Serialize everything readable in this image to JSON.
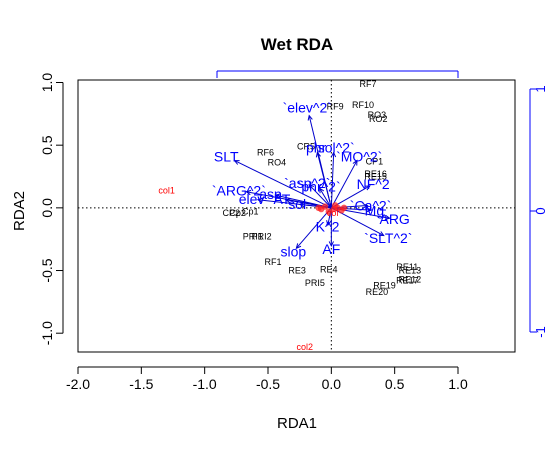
{
  "chart_data": {
    "type": "scatter",
    "title": "Wet RDA",
    "xlabel": "RDA1",
    "ylabel": "RDA2",
    "xlim": [
      -2.0,
      1.45
    ],
    "ylim": [
      -1.15,
      1.02
    ],
    "xticks": [
      "-2.0",
      "-1.5",
      "-1.0",
      "-0.5",
      "0.0",
      "0.5",
      "1.0"
    ],
    "yticks": [
      "-1.0",
      "-0.5",
      "0.0",
      "0.5",
      "1.0"
    ],
    "right_axis": {
      "ticks": [
        "-1",
        "0",
        "1"
      ],
      "color": "#0000ff"
    },
    "top_axis": {
      "color": "#0000ff"
    },
    "reference_lines": {
      "x": 0,
      "y": 0,
      "style": "dotted"
    },
    "sites": [
      {
        "label": "RF7",
        "x": 0.29,
        "y": 0.99
      },
      {
        "label": "RF9",
        "x": 0.03,
        "y": 0.81
      },
      {
        "label": "RF10",
        "x": 0.25,
        "y": 0.82
      },
      {
        "label": "RO3",
        "x": 0.36,
        "y": 0.74
      },
      {
        "label": "RO2",
        "x": 0.37,
        "y": 0.71
      },
      {
        "label": "CR5",
        "x": -0.2,
        "y": 0.49
      },
      {
        "label": "RF6",
        "x": -0.52,
        "y": 0.44
      },
      {
        "label": "RO4",
        "x": -0.43,
        "y": 0.36
      },
      {
        "label": "CP1",
        "x": 0.34,
        "y": 0.37
      },
      {
        "label": "RE16",
        "x": 0.35,
        "y": 0.27
      },
      {
        "label": "RE15",
        "x": 0.35,
        "y": 0.25
      },
      {
        "label": "Cp1",
        "x": -0.64,
        "y": -0.03
      },
      {
        "label": "CP2",
        "x": -0.79,
        "y": -0.04
      },
      {
        "label": "Cp2",
        "x": -0.74,
        "y": -0.04
      },
      {
        "label": "PRI2",
        "x": -0.55,
        "y": -0.23
      },
      {
        "label": "PRI1",
        "x": -0.62,
        "y": -0.23
      },
      {
        "label": "RF1",
        "x": -0.46,
        "y": -0.43
      },
      {
        "label": "RE3",
        "x": -0.27,
        "y": -0.5
      },
      {
        "label": "RE4",
        "x": -0.02,
        "y": -0.49
      },
      {
        "label": "PRI5",
        "x": -0.13,
        "y": -0.6
      },
      {
        "label": "RE11",
        "x": 0.6,
        "y": -0.47
      },
      {
        "label": "RE13",
        "x": 0.62,
        "y": -0.5
      },
      {
        "label": "RE12",
        "x": 0.62,
        "y": -0.57
      },
      {
        "label": "RE17",
        "x": 0.6,
        "y": -0.58
      },
      {
        "label": "RE19",
        "x": 0.42,
        "y": -0.62
      },
      {
        "label": "RE20",
        "x": 0.36,
        "y": -0.67
      }
    ],
    "species": [
      {
        "label": "col1",
        "x": -1.3,
        "y": 0.14
      },
      {
        "label": "col2",
        "x": -0.21,
        "y": -1.11
      },
      {
        "label": "col",
        "x": 0.01,
        "y": -0.04
      }
    ],
    "biplot_vectors": [
      {
        "label": "`elev^2`",
        "x": -0.19,
        "y": 0.8
      },
      {
        "label": "SLT",
        "x": -0.83,
        "y": 0.41
      },
      {
        "label": "`ARG^2`",
        "x": -0.73,
        "y": 0.14
      },
      {
        "label": "elev",
        "x": -0.63,
        "y": 0.07
      },
      {
        "label": "asp",
        "x": -0.48,
        "y": 0.11
      },
      {
        "label": "AT",
        "x": -0.39,
        "y": 0.07
      },
      {
        "label": "sol",
        "x": -0.27,
        "y": 0.03
      },
      {
        "label": "phr",
        "x": -0.12,
        "y": 0.48
      },
      {
        "label": "`sol^2`",
        "x": 0.02,
        "y": 0.48
      },
      {
        "label": "`MO^2`",
        "x": 0.22,
        "y": 0.41
      },
      {
        "label": "`asp^2`",
        "x": -0.19,
        "y": 0.2
      },
      {
        "label": "`phr^2`",
        "x": -0.1,
        "y": 0.17
      },
      {
        "label": "NF^2",
        "x": 0.33,
        "y": 0.19
      },
      {
        "label": "`Ca^2`",
        "x": 0.31,
        "y": 0.02
      },
      {
        "label": "Mg",
        "x": 0.34,
        "y": -0.02
      },
      {
        "label": "ARG",
        "x": 0.5,
        "y": -0.09
      },
      {
        "label": "`SLT^2`",
        "x": 0.45,
        "y": -0.24
      },
      {
        "label": "K^2",
        "x": -0.03,
        "y": -0.15
      },
      {
        "label": "AF",
        "x": 0.0,
        "y": -0.33
      },
      {
        "label": "slop",
        "x": -0.3,
        "y": -0.35
      }
    ]
  }
}
